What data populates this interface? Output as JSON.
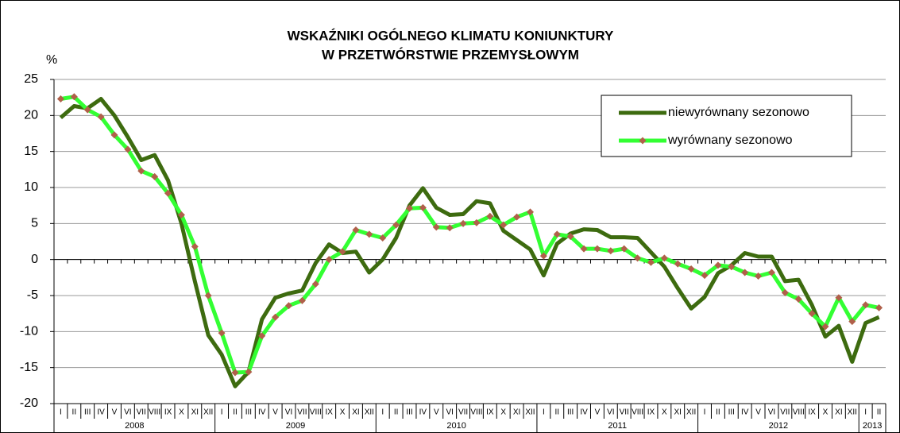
{
  "chart_data": {
    "type": "line",
    "title_lines": [
      "WSKAŹNIKI OGÓLNEGO KLIMATU KONIUNKTURY",
      "W PRZETWÓRSTWIE PRZEMYSŁOWYM"
    ],
    "y_label": "%",
    "categories": [
      "I",
      "II",
      "III",
      "IV",
      "V",
      "VI",
      "VII",
      "VIII",
      "IX",
      "X",
      "XI",
      "XII",
      "I",
      "II",
      "III",
      "IV",
      "V",
      "VI",
      "VII",
      "VIII",
      "IX",
      "X",
      "XI",
      "XII",
      "I",
      "II",
      "III",
      "IV",
      "V",
      "VI",
      "VII",
      "VIII",
      "IX",
      "X",
      "XI",
      "XII",
      "I",
      "II",
      "III",
      "IV",
      "V",
      "VI",
      "VII",
      "VIII",
      "IX",
      "X",
      "XI",
      "XII",
      "I",
      "II",
      "III",
      "IV",
      "V",
      "VI",
      "VII",
      "VIII",
      "IX",
      "X",
      "XI",
      "XII",
      "I",
      "II"
    ],
    "years": [
      "2008",
      "2009",
      "2010",
      "2011",
      "2012",
      "2013"
    ],
    "series": [
      {
        "name": "niewyrównany sezonowo",
        "color": "#3d6b0f",
        "marker": false,
        "values": [
          19.7,
          21.3,
          21.0,
          22.3,
          20.0,
          17.0,
          13.8,
          14.5,
          11.0,
          5.0,
          -3.0,
          -10.5,
          -13.2,
          -17.6,
          -15.6,
          -8.3,
          -5.3,
          -4.7,
          -4.3,
          -0.5,
          2.1,
          0.9,
          1.1,
          -1.8,
          0.0,
          3.0,
          7.5,
          9.9,
          7.2,
          6.2,
          6.3,
          8.1,
          7.8,
          4.0,
          2.7,
          1.4,
          -2.2,
          2.2,
          3.6,
          4.2,
          4.1,
          3.1,
          3.1,
          3.0,
          1.0,
          -1.0,
          -4.0,
          -6.8,
          -5.2,
          -1.9,
          -0.8,
          0.9,
          0.4,
          0.4,
          -3.0,
          -2.8,
          -6.3,
          -10.7,
          -9.2,
          -14.2,
          -8.8,
          -8.0
        ]
      },
      {
        "name": "wyrównany sezonowo",
        "color": "#33ff33",
        "marker": true,
        "marker_color": "#b0604a",
        "values": [
          22.3,
          22.6,
          20.8,
          19.8,
          17.3,
          15.3,
          12.3,
          11.5,
          9.2,
          6.2,
          1.8,
          -5.0,
          -10.2,
          -15.7,
          -15.6,
          -10.6,
          -8.0,
          -6.4,
          -5.7,
          -3.4,
          0.0,
          1.1,
          4.1,
          3.5,
          3.0,
          4.8,
          7.1,
          7.2,
          4.5,
          4.4,
          5.0,
          5.1,
          6.0,
          4.8,
          5.9,
          6.6,
          0.5,
          3.5,
          3.2,
          1.5,
          1.5,
          1.2,
          1.5,
          0.2,
          -0.4,
          0.2,
          -0.6,
          -1.3,
          -2.2,
          -0.8,
          -1.0,
          -1.8,
          -2.3,
          -1.8,
          -4.6,
          -5.5,
          -7.5,
          -9.3,
          -5.3,
          -8.6,
          -6.3,
          -6.7
        ]
      }
    ],
    "ylim": [
      -20,
      25
    ],
    "yticks": [
      -20,
      -15,
      -10,
      -5,
      0,
      5,
      10,
      15,
      20,
      25
    ],
    "grid": true,
    "legend": "top-right"
  }
}
